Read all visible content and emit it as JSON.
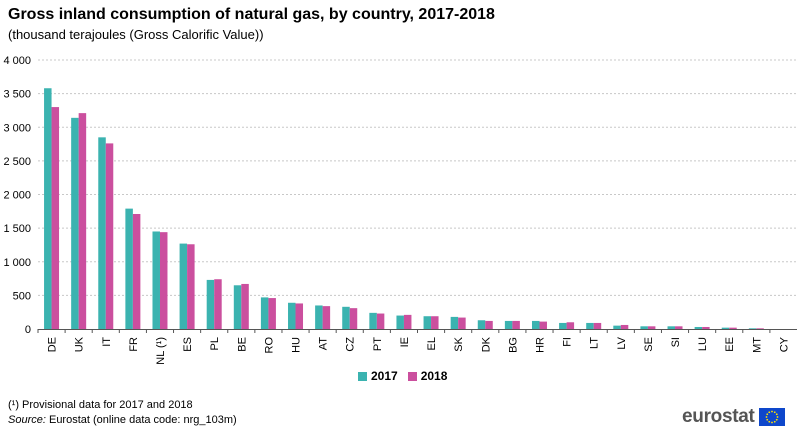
{
  "title": "Gross inland consumption of natural gas, by country, 2017-2018",
  "subtitle": "(thousand  terajoules  (Gross Calorific Value))",
  "footnote": "(¹) Provisional data for 2017 and 2018",
  "source_label": "Source:",
  "source_text": " Eurostat (online data code: nrg_103m)",
  "logo_text": "eurostat",
  "colors": {
    "series_2017": "#3bb3b0",
    "series_2018": "#cb4f9e",
    "grid": "#c8c8c8",
    "axis": "#555555",
    "flag": "#0e47cb",
    "stars": "#ffe300"
  },
  "chart_data": {
    "type": "bar",
    "title": "Gross inland consumption of natural gas, by country, 2017-2018",
    "xlabel": "",
    "ylabel": "",
    "ylim": [
      0,
      4000
    ],
    "yticks": [
      0,
      500,
      1000,
      1500,
      2000,
      2500,
      3000,
      3500,
      4000
    ],
    "ytick_labels": [
      "0",
      "500",
      "1 000",
      "1 500",
      "2 000",
      "2 500",
      "3 000",
      "3 500",
      "4 000"
    ],
    "grid": true,
    "legend_position": "bottom-center",
    "categories": [
      "DE",
      "UK",
      "IT",
      "FR",
      "NL (¹)",
      "ES",
      "PL",
      "BE",
      "RO",
      "HU",
      "AT",
      "CZ",
      "PT",
      "IE",
      "EL",
      "SK",
      "DK",
      "BG",
      "HR",
      "FI",
      "LT",
      "LV",
      "SE",
      "SI",
      "LU",
      "EE",
      "MT",
      "CY"
    ],
    "series": [
      {
        "name": "2017",
        "values": [
          3580,
          3140,
          2850,
          1790,
          1450,
          1270,
          730,
          650,
          470,
          390,
          350,
          330,
          240,
          200,
          190,
          180,
          130,
          120,
          120,
          90,
          90,
          50,
          40,
          40,
          30,
          20,
          10,
          0
        ]
      },
      {
        "name": "2018",
        "values": [
          3300,
          3210,
          2760,
          1710,
          1440,
          1260,
          740,
          670,
          460,
          380,
          340,
          310,
          230,
          210,
          190,
          170,
          120,
          120,
          110,
          100,
          90,
          60,
          40,
          40,
          30,
          20,
          10,
          0
        ]
      }
    ]
  }
}
